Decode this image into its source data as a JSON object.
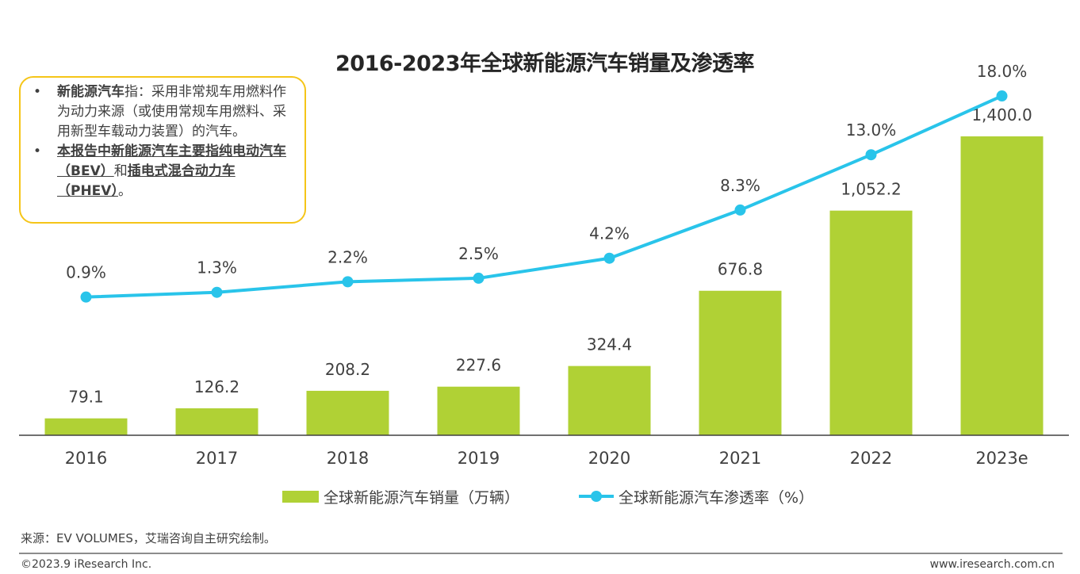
{
  "chart_data": {
    "type": "bar+line",
    "title": "2016-2023年全球新能源汽车销量及渗透率",
    "categories": [
      "2016",
      "2017",
      "2018",
      "2019",
      "2020",
      "2021",
      "2022",
      "2023e"
    ],
    "series": [
      {
        "name": "全球新能源汽车销量（万辆）",
        "type": "bar",
        "color": "#b0d135",
        "values": [
          79.1,
          126.2,
          208.2,
          227.6,
          324.4,
          676.8,
          1052.2,
          1400.0
        ],
        "labels": [
          "79.1",
          "126.2",
          "208.2",
          "227.6",
          "324.4",
          "676.8",
          "1,052.2",
          "1,400.0"
        ]
      },
      {
        "name": "全球新能源汽车渗透率（%）",
        "type": "line",
        "color": "#29c4ea",
        "values": [
          0.9,
          1.3,
          2.2,
          2.5,
          4.2,
          8.3,
          13.0,
          18.0
        ],
        "labels": [
          "0.9%",
          "1.3%",
          "2.2%",
          "2.5%",
          "4.2%",
          "8.3%",
          "13.0%",
          "18.0%"
        ]
      }
    ]
  },
  "note": {
    "b1_bold": "新能源汽车",
    "b1_text": "指：采用非常规车用燃料作为动力来源（或使用常规车用燃料、采用新型车载动力装置）的汽车。",
    "b2_bold_a": "本报告中新能源汽车主要指纯电动汽车（BEV）",
    "b2_mid": "和",
    "b2_bold_b": "插电式混合动力车（PHEV）",
    "b2_end": "。"
  },
  "footer": {
    "source": "来源：EV VOLUMES，艾瑞咨询自主研究绘制。",
    "copyright": "©2023.9 iResearch Inc.",
    "website": "www.iresearch.com.cn"
  }
}
